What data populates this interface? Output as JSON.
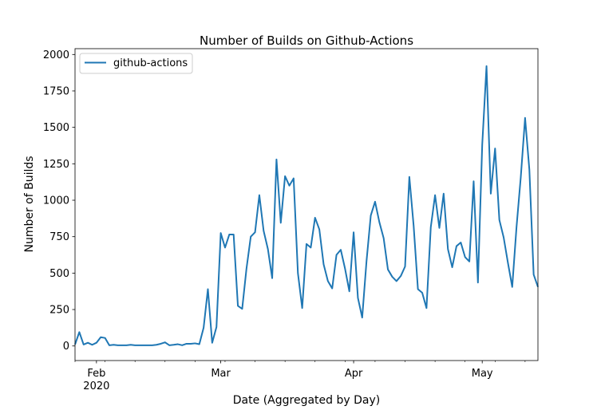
{
  "chart_data": {
    "type": "line",
    "title": "Number of Builds on Github-Actions",
    "xlabel": "Date (Aggregated by Day)",
    "ylabel": "Number of Builds",
    "ylim": [
      -100,
      2040
    ],
    "xlim": [
      "2020-01-27",
      "2020-05-14"
    ],
    "yticks": [
      0,
      250,
      500,
      750,
      1000,
      1250,
      1500,
      1750,
      2000
    ],
    "xticks": [
      {
        "date": "2020-02-01",
        "label": "Feb",
        "sublabel": "2020"
      },
      {
        "date": "2020-03-01",
        "label": "Mar",
        "sublabel": ""
      },
      {
        "date": "2020-04-01",
        "label": "Apr",
        "sublabel": ""
      },
      {
        "date": "2020-05-01",
        "label": "May",
        "sublabel": ""
      }
    ],
    "legend": {
      "placement": "upper-left"
    },
    "grid": false,
    "series": [
      {
        "name": "github-actions",
        "color": "#1f77b4",
        "points": [
          [
            "2020-01-27",
            10
          ],
          [
            "2020-01-28",
            95
          ],
          [
            "2020-01-29",
            10
          ],
          [
            "2020-01-30",
            22
          ],
          [
            "2020-01-31",
            8
          ],
          [
            "2020-02-01",
            22
          ],
          [
            "2020-02-02",
            60
          ],
          [
            "2020-02-03",
            55
          ],
          [
            "2020-02-04",
            5
          ],
          [
            "2020-02-05",
            8
          ],
          [
            "2020-02-06",
            5
          ],
          [
            "2020-02-07",
            5
          ],
          [
            "2020-02-08",
            5
          ],
          [
            "2020-02-09",
            8
          ],
          [
            "2020-02-10",
            5
          ],
          [
            "2020-02-11",
            5
          ],
          [
            "2020-02-12",
            5
          ],
          [
            "2020-02-13",
            5
          ],
          [
            "2020-02-14",
            5
          ],
          [
            "2020-02-15",
            8
          ],
          [
            "2020-02-16",
            15
          ],
          [
            "2020-02-17",
            25
          ],
          [
            "2020-02-18",
            5
          ],
          [
            "2020-02-19",
            8
          ],
          [
            "2020-02-20",
            12
          ],
          [
            "2020-02-21",
            5
          ],
          [
            "2020-02-22",
            15
          ],
          [
            "2020-02-23",
            15
          ],
          [
            "2020-02-24",
            18
          ],
          [
            "2020-02-25",
            12
          ],
          [
            "2020-02-26",
            125
          ],
          [
            "2020-02-27",
            390
          ],
          [
            "2020-02-28",
            22
          ],
          [
            "2020-02-29",
            130
          ],
          [
            "2020-03-01",
            775
          ],
          [
            "2020-03-02",
            675
          ],
          [
            "2020-03-03",
            765
          ],
          [
            "2020-03-04",
            765
          ],
          [
            "2020-03-05",
            275
          ],
          [
            "2020-03-06",
            255
          ],
          [
            "2020-03-07",
            530
          ],
          [
            "2020-03-08",
            750
          ],
          [
            "2020-03-09",
            780
          ],
          [
            "2020-03-10",
            1035
          ],
          [
            "2020-03-11",
            790
          ],
          [
            "2020-03-12",
            665
          ],
          [
            "2020-03-13",
            465
          ],
          [
            "2020-03-14",
            1280
          ],
          [
            "2020-03-15",
            845
          ],
          [
            "2020-03-16",
            1165
          ],
          [
            "2020-03-17",
            1100
          ],
          [
            "2020-03-18",
            1150
          ],
          [
            "2020-03-19",
            500
          ],
          [
            "2020-03-20",
            260
          ],
          [
            "2020-03-21",
            700
          ],
          [
            "2020-03-22",
            675
          ],
          [
            "2020-03-23",
            880
          ],
          [
            "2020-03-24",
            800
          ],
          [
            "2020-03-25",
            560
          ],
          [
            "2020-03-26",
            445
          ],
          [
            "2020-03-27",
            395
          ],
          [
            "2020-03-28",
            625
          ],
          [
            "2020-03-29",
            660
          ],
          [
            "2020-03-30",
            530
          ],
          [
            "2020-03-31",
            375
          ],
          [
            "2020-04-01",
            780
          ],
          [
            "2020-04-02",
            330
          ],
          [
            "2020-04-03",
            195
          ],
          [
            "2020-04-04",
            580
          ],
          [
            "2020-04-05",
            895
          ],
          [
            "2020-04-06",
            990
          ],
          [
            "2020-04-07",
            850
          ],
          [
            "2020-04-08",
            740
          ],
          [
            "2020-04-09",
            525
          ],
          [
            "2020-04-10",
            475
          ],
          [
            "2020-04-11",
            445
          ],
          [
            "2020-04-12",
            480
          ],
          [
            "2020-04-13",
            545
          ],
          [
            "2020-04-14",
            1160
          ],
          [
            "2020-04-15",
            825
          ],
          [
            "2020-04-16",
            390
          ],
          [
            "2020-04-17",
            365
          ],
          [
            "2020-04-18",
            260
          ],
          [
            "2020-04-19",
            815
          ],
          [
            "2020-04-20",
            1035
          ],
          [
            "2020-04-21",
            810
          ],
          [
            "2020-04-22",
            1045
          ],
          [
            "2020-04-23",
            665
          ],
          [
            "2020-04-24",
            540
          ],
          [
            "2020-04-25",
            685
          ],
          [
            "2020-04-26",
            710
          ],
          [
            "2020-04-27",
            610
          ],
          [
            "2020-04-28",
            580
          ],
          [
            "2020-04-29",
            1130
          ],
          [
            "2020-04-30",
            435
          ],
          [
            "2020-05-01",
            1380
          ],
          [
            "2020-05-02",
            1920
          ],
          [
            "2020-05-03",
            1045
          ],
          [
            "2020-05-04",
            1355
          ],
          [
            "2020-05-05",
            865
          ],
          [
            "2020-05-06",
            745
          ],
          [
            "2020-05-07",
            570
          ],
          [
            "2020-05-08",
            405
          ],
          [
            "2020-05-09",
            815
          ],
          [
            "2020-05-10",
            1160
          ],
          [
            "2020-05-11",
            1565
          ],
          [
            "2020-05-12",
            1210
          ],
          [
            "2020-05-13",
            490
          ],
          [
            "2020-05-14",
            405
          ]
        ]
      }
    ]
  }
}
